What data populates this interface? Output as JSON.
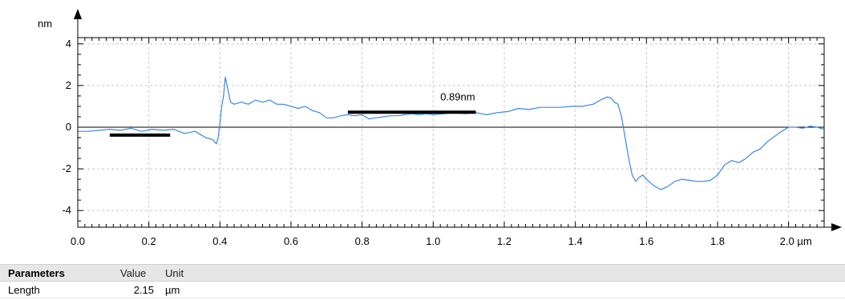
{
  "chart_data": {
    "type": "line",
    "ylabel": "nm",
    "xlim": [
      0.0,
      2.1
    ],
    "ylim": [
      -4.8,
      4.3
    ],
    "xticks": [
      0.0,
      0.2,
      0.4,
      0.6,
      0.8,
      1.0,
      1.2,
      1.4,
      1.6,
      1.8,
      2.0
    ],
    "xtick_labels": [
      "0.0",
      "0.2",
      "0.4",
      "0.6",
      "0.8",
      "1.0",
      "1.2",
      "1.4",
      "1.6",
      "1.8",
      "2.0 µm"
    ],
    "yticks": [
      -4,
      -2,
      0,
      2,
      4
    ],
    "ytick_labels": [
      "-4",
      "-2",
      "0",
      "2",
      "4"
    ],
    "grid": true,
    "series": [
      {
        "color": "#3a86e6",
        "x": [
          0.0,
          0.03,
          0.06,
          0.09,
          0.12,
          0.15,
          0.18,
          0.21,
          0.24,
          0.27,
          0.3,
          0.33,
          0.36,
          0.38,
          0.39,
          0.395,
          0.4,
          0.405,
          0.41,
          0.415,
          0.42,
          0.425,
          0.43,
          0.44,
          0.46,
          0.48,
          0.5,
          0.52,
          0.54,
          0.56,
          0.58,
          0.6,
          0.62,
          0.64,
          0.66,
          0.68,
          0.7,
          0.72,
          0.74,
          0.76,
          0.78,
          0.8,
          0.82,
          0.84,
          0.86,
          0.88,
          0.9,
          0.92,
          0.94,
          0.96,
          0.98,
          1.0,
          1.03,
          1.06,
          1.09,
          1.12,
          1.15,
          1.18,
          1.21,
          1.24,
          1.27,
          1.3,
          1.33,
          1.36,
          1.39,
          1.42,
          1.45,
          1.47,
          1.49,
          1.5,
          1.51,
          1.52,
          1.53,
          1.54,
          1.55,
          1.56,
          1.57,
          1.58,
          1.59,
          1.6,
          1.62,
          1.64,
          1.66,
          1.68,
          1.7,
          1.72,
          1.74,
          1.76,
          1.78,
          1.8,
          1.82,
          1.84,
          1.86,
          1.88,
          1.9,
          1.92,
          1.94,
          1.96,
          1.98,
          2.0,
          2.02,
          2.04,
          2.06,
          2.08,
          2.1
        ],
        "values": [
          -0.2,
          -0.2,
          -0.15,
          -0.1,
          -0.15,
          -0.05,
          -0.2,
          -0.1,
          -0.15,
          -0.1,
          -0.3,
          -0.2,
          -0.5,
          -0.6,
          -0.8,
          -0.5,
          0.2,
          1.0,
          1.5,
          2.4,
          2.0,
          1.6,
          1.2,
          1.1,
          1.2,
          1.1,
          1.3,
          1.2,
          1.3,
          1.1,
          1.1,
          1.0,
          0.9,
          1.0,
          0.8,
          0.7,
          0.45,
          0.45,
          0.55,
          0.6,
          0.55,
          0.6,
          0.4,
          0.45,
          0.5,
          0.55,
          0.55,
          0.6,
          0.65,
          0.6,
          0.65,
          0.6,
          0.65,
          0.7,
          0.65,
          0.7,
          0.6,
          0.7,
          0.75,
          0.9,
          0.85,
          0.95,
          0.95,
          0.95,
          1.0,
          1.0,
          1.1,
          1.3,
          1.45,
          1.4,
          1.2,
          1.1,
          0.5,
          -0.5,
          -1.5,
          -2.3,
          -2.6,
          -2.4,
          -2.3,
          -2.5,
          -2.8,
          -3.0,
          -2.85,
          -2.6,
          -2.5,
          -2.55,
          -2.6,
          -2.6,
          -2.55,
          -2.3,
          -1.8,
          -1.6,
          -1.7,
          -1.5,
          -1.2,
          -1.05,
          -0.7,
          -0.45,
          -0.2,
          0.0,
          0.0,
          -0.05,
          0.05,
          0.0,
          -0.1
        ]
      }
    ],
    "markers": [
      {
        "x0": 0.09,
        "x1": 0.26,
        "y": -0.38
      },
      {
        "x0": 0.76,
        "x1": 1.12,
        "y": 0.72
      }
    ],
    "annotations": [
      {
        "text": "0.89nm",
        "x": 1.02,
        "y": 1.28
      }
    ]
  },
  "parameters_table": {
    "headers": [
      "Parameters",
      "Value",
      "Unit"
    ],
    "rows": [
      {
        "name": "Length",
        "value": "2.15",
        "unit": "µm"
      }
    ]
  }
}
